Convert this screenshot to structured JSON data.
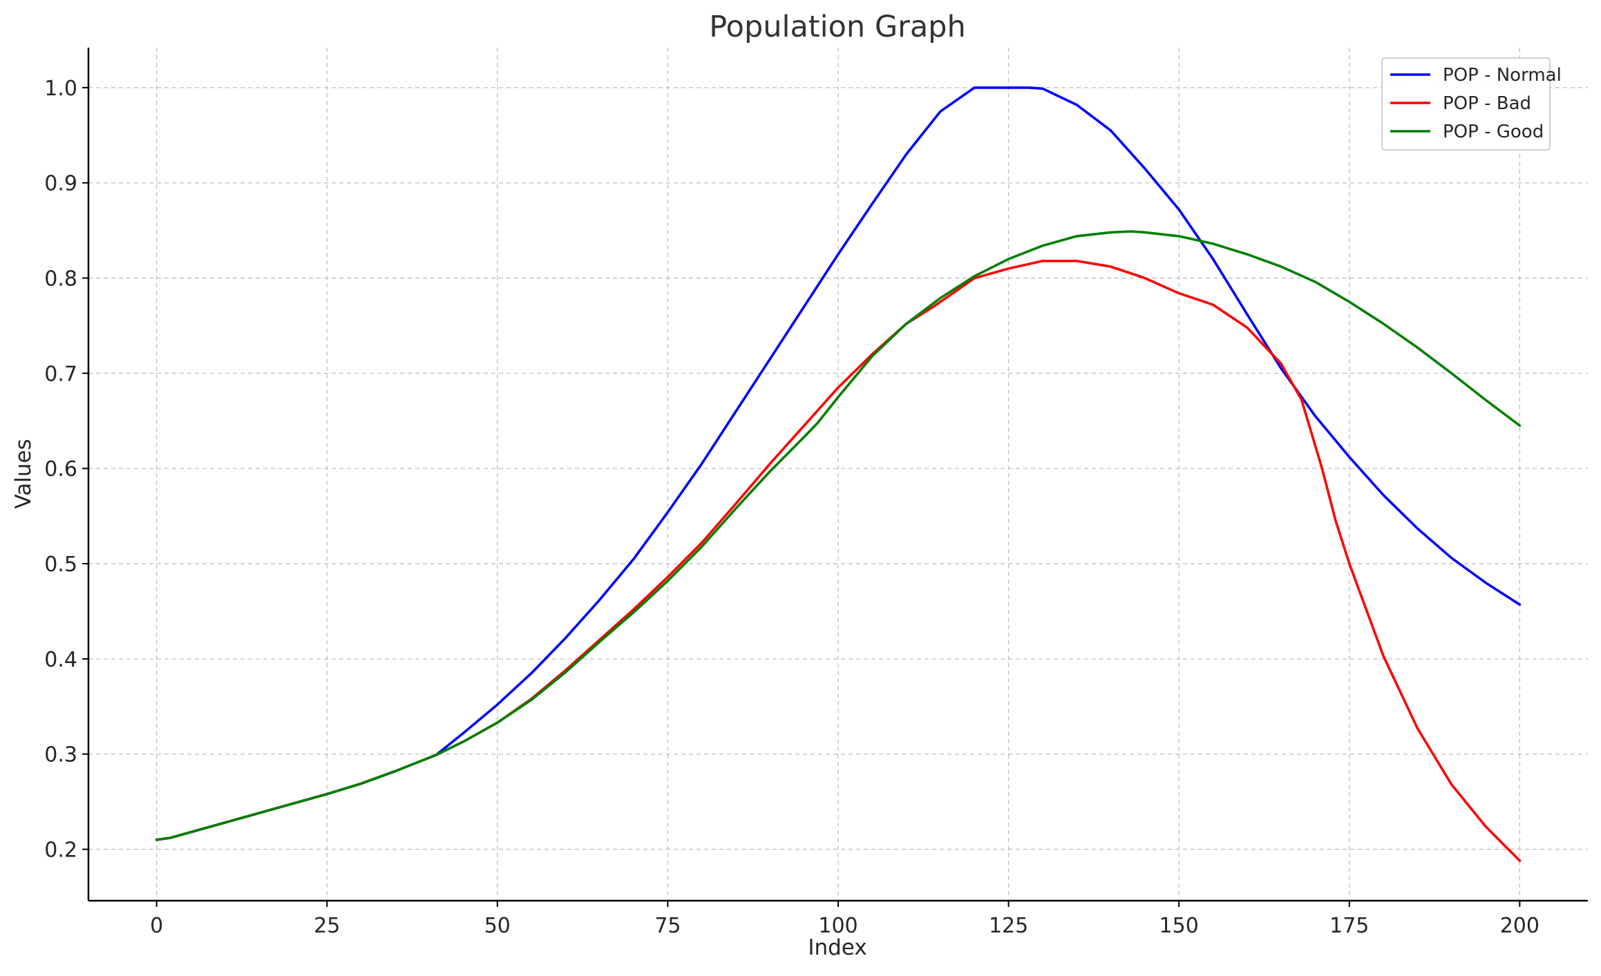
{
  "chart_data": {
    "type": "line",
    "title": "Population Graph",
    "xlabel": "Index",
    "ylabel": "Values",
    "xlim": [
      -10,
      210
    ],
    "ylim": [
      0.146,
      1.042
    ],
    "x_ticks": [
      0,
      25,
      50,
      75,
      100,
      125,
      150,
      175,
      200
    ],
    "y_ticks": [
      0.2,
      0.3,
      0.4,
      0.5,
      0.6,
      0.7,
      0.8,
      0.9,
      1.0
    ],
    "y_tick_labels": [
      "0.2",
      "0.3",
      "0.4",
      "0.5",
      "0.6",
      "0.7",
      "0.8",
      "0.9",
      "1.0"
    ],
    "grid": true,
    "legend_position": "top-right",
    "series": [
      {
        "name": "POP - Normal",
        "color": "#0000ff",
        "x": [
          0,
          2,
          10,
          20,
          25,
          30,
          35,
          41,
          45,
          50,
          55,
          60,
          65,
          70,
          75,
          80,
          85,
          90,
          95,
          100,
          105,
          110,
          115,
          120,
          125,
          128,
          130,
          135,
          140,
          145,
          150,
          155,
          160,
          165,
          170,
          175,
          180,
          185,
          190,
          195,
          200
        ],
        "y": [
          0.21,
          0.212,
          0.228,
          0.248,
          0.258,
          0.269,
          0.282,
          0.299,
          0.322,
          0.352,
          0.385,
          0.422,
          0.462,
          0.505,
          0.554,
          0.605,
          0.66,
          0.715,
          0.77,
          0.825,
          0.878,
          0.93,
          0.975,
          1.0,
          1.0,
          1.0,
          0.999,
          0.982,
          0.955,
          0.915,
          0.872,
          0.82,
          0.762,
          0.705,
          0.655,
          0.612,
          0.572,
          0.537,
          0.506,
          0.48,
          0.457
        ]
      },
      {
        "name": "POP - Bad",
        "color": "#ff0000",
        "x": [
          0,
          2,
          10,
          20,
          25,
          30,
          35,
          41,
          45,
          50,
          55,
          60,
          65,
          70,
          75,
          80,
          85,
          90,
          95,
          100,
          105,
          110,
          114,
          120,
          125,
          130,
          135,
          140,
          145,
          150,
          155,
          160,
          165,
          168,
          171,
          173,
          175,
          180,
          185,
          190,
          195,
          200
        ],
        "y": [
          0.21,
          0.212,
          0.228,
          0.248,
          0.258,
          0.269,
          0.282,
          0.299,
          0.313,
          0.333,
          0.358,
          0.388,
          0.42,
          0.452,
          0.486,
          0.522,
          0.563,
          0.605,
          0.645,
          0.685,
          0.72,
          0.752,
          0.77,
          0.8,
          0.81,
          0.818,
          0.818,
          0.812,
          0.8,
          0.784,
          0.772,
          0.748,
          0.71,
          0.672,
          0.6,
          0.545,
          0.5,
          0.403,
          0.327,
          0.268,
          0.224,
          0.188
        ]
      },
      {
        "name": "POP - Good",
        "color": "#008000",
        "x": [
          0,
          2,
          10,
          20,
          25,
          30,
          35,
          41,
          45,
          50,
          55,
          60,
          65,
          70,
          75,
          80,
          85,
          90,
          95,
          97,
          100,
          105,
          110,
          115,
          120,
          125,
          130,
          135,
          140,
          143,
          145,
          150,
          155,
          160,
          165,
          170,
          175,
          180,
          185,
          190,
          195,
          200
        ],
        "y": [
          0.21,
          0.212,
          0.228,
          0.248,
          0.258,
          0.269,
          0.282,
          0.299,
          0.313,
          0.333,
          0.357,
          0.386,
          0.418,
          0.449,
          0.482,
          0.518,
          0.558,
          0.597,
          0.633,
          0.648,
          0.675,
          0.718,
          0.752,
          0.779,
          0.802,
          0.82,
          0.834,
          0.844,
          0.848,
          0.849,
          0.848,
          0.844,
          0.836,
          0.825,
          0.812,
          0.796,
          0.775,
          0.752,
          0.727,
          0.7,
          0.672,
          0.645
        ]
      }
    ]
  }
}
